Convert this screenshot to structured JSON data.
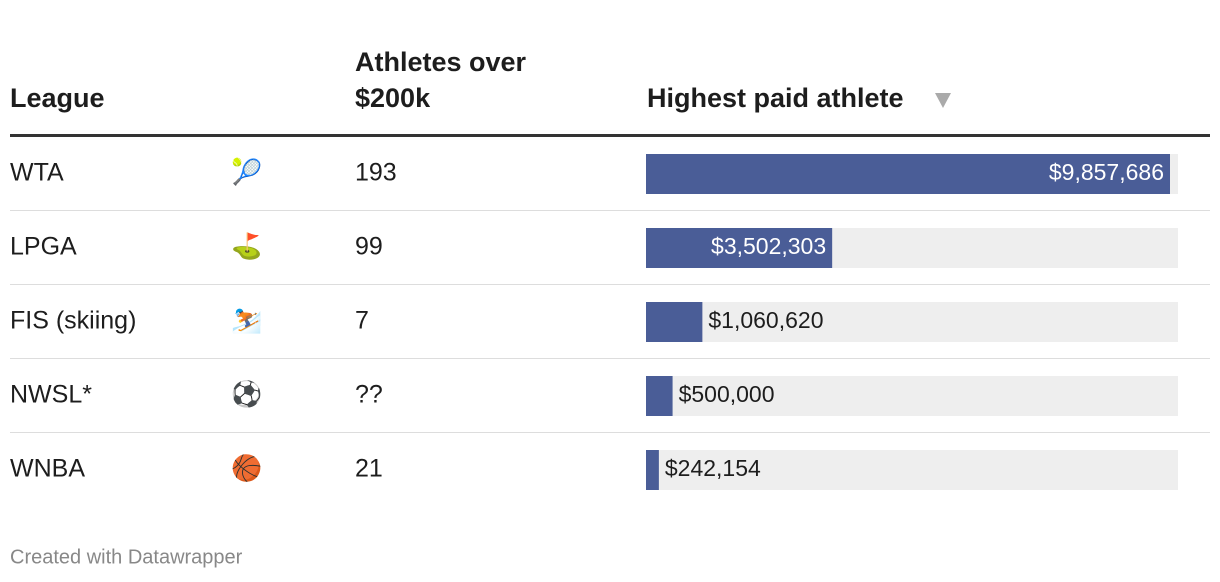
{
  "table": {
    "headers": {
      "league": "League",
      "count": [
        "Athletes over",
        "$200k"
      ],
      "pay": "Highest paid athlete"
    },
    "rows": [
      {
        "league": "WTA",
        "icon": "🎾",
        "count": 193,
        "pay": 9857686,
        "pay_label": "$9,857,686"
      },
      {
        "league": "LPGA",
        "icon": "⛳",
        "count": 99,
        "pay": 3502303,
        "pay_label": "$3,502,303"
      },
      {
        "league": "FIS (skiing)",
        "icon": "⛷️",
        "count": 7,
        "pay": 1060620,
        "pay_label": "$1,060,620"
      },
      {
        "league": "NWSL*",
        "icon": "⚽",
        "count": "??",
        "pay": 500000,
        "pay_label": "$500,000"
      },
      {
        "league": "WNBA",
        "icon": "🏀",
        "count": 21,
        "pay": 242154,
        "pay_label": "$242,154"
      }
    ],
    "bar_color": "#4a5d97",
    "track_color": "#eeeeee"
  },
  "footer": "Created with Datawrapper"
}
